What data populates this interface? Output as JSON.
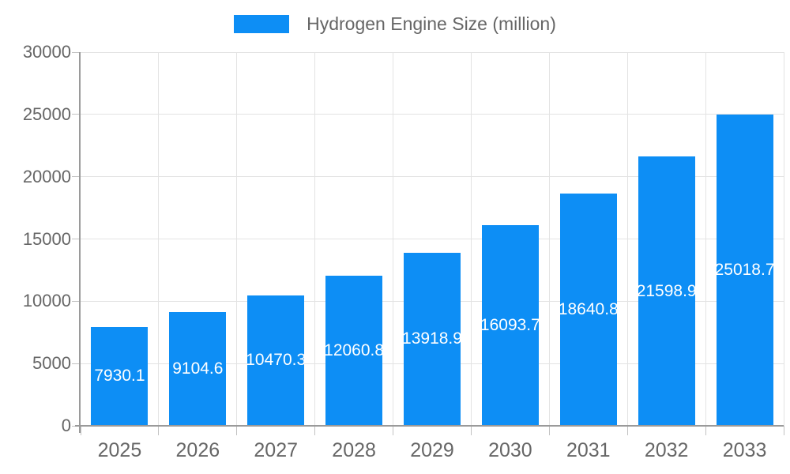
{
  "legend": {
    "label": "Hydrogen Engine Size (million)"
  },
  "colors": {
    "bar": "#0d8ef5",
    "grid": "#e3e3e3",
    "axis": "#9a9a9a",
    "tick": "#c2c2c2",
    "text": "#666666",
    "bar_label": "#ffffff",
    "background": "#ffffff"
  },
  "chart_data": {
    "type": "bar",
    "title": "Hydrogen Engine Size (million)",
    "xlabel": "",
    "ylabel": "",
    "categories": [
      "2025",
      "2026",
      "2027",
      "2028",
      "2029",
      "2030",
      "2031",
      "2032",
      "2033"
    ],
    "values": [
      7930.1,
      9104.6,
      10470.3,
      12060.8,
      13918.9,
      16093.7,
      18640.8,
      21598.9,
      25018.7
    ],
    "value_labels": [
      "7930.1",
      "9104.6",
      "10470.3",
      "12060.8",
      "13918.9",
      "16093.7",
      "18640.8",
      "21598.9",
      "25018.7"
    ],
    "ylim": [
      0,
      30000
    ],
    "y_ticks": [
      0,
      5000,
      10000,
      15000,
      20000,
      25000,
      30000
    ],
    "grid": true,
    "legend_position": "top",
    "bar_label_position": "center-inside",
    "bar_label_color": "#ffffff"
  }
}
